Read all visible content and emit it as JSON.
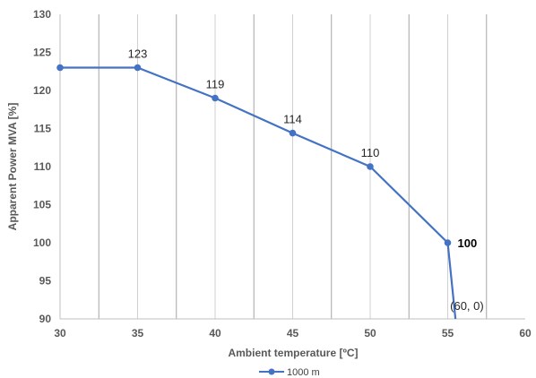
{
  "chart_data": {
    "type": "line",
    "title": "",
    "xlabel": "Ambient temperature [ºC]",
    "ylabel": "Apparent  Power MVA [%]",
    "xlim": [
      30,
      60
    ],
    "ylim": [
      90,
      130
    ],
    "x_ticks": [
      "30",
      "35",
      "40",
      "45",
      "50",
      "55",
      "60"
    ],
    "y_ticks": [
      "90",
      "95",
      "100",
      "105",
      "110",
      "115",
      "120",
      "125",
      "130"
    ],
    "grid": "vertical",
    "legend": "bottom",
    "series": [
      {
        "name": "1000 m",
        "color": "#4472c4",
        "x": [
          30,
          35,
          40,
          45,
          50,
          55,
          55.5
        ],
        "y": [
          123,
          123,
          119,
          114.4,
          110,
          100,
          90
        ],
        "markers": [
          true,
          true,
          true,
          true,
          true,
          true,
          false
        ]
      }
    ],
    "data_labels": [
      {
        "text": "123",
        "x": 35,
        "y": 123,
        "bold": false
      },
      {
        "text": "119",
        "x": 40,
        "y": 119,
        "bold": false
      },
      {
        "text": "114",
        "x": 45,
        "y": 114.4,
        "bold": false
      },
      {
        "text": "110",
        "x": 50,
        "y": 110,
        "bold": false
      },
      {
        "text": "100",
        "x": 55,
        "y": 100,
        "bold": true
      },
      {
        "text": "(60, 0)",
        "x": 55.5,
        "y": 90,
        "bold": false
      }
    ]
  }
}
